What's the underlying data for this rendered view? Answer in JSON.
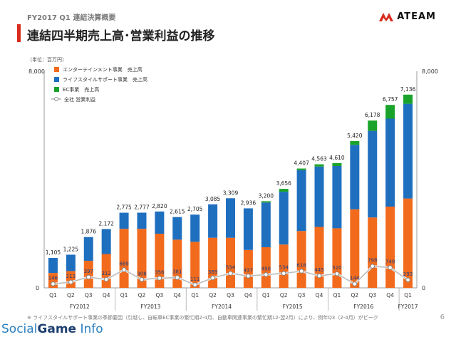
{
  "header": {
    "subtitle": "FY2017 Q1 連結決算概要",
    "title": "連結四半期売上高･営業利益の推移",
    "logo_text": "ATEAM"
  },
  "footnote": "※ ライフスタイルサポート事業の季節要因（引越し、自転車EC事業の繁忙期2-4月、自動車関連事業の繁忙期12-翌2月）により、例年Q3（2-4月）がピーク",
  "watermark": {
    "part1": "Social",
    "part2": "Game",
    "part3": "Info"
  },
  "page_number": "6",
  "colors": {
    "entertainment": "#f26b1d",
    "lifestyle": "#1f6fbf",
    "ec": "#1aa32a",
    "op_line": "#bbbbbb",
    "accent": "#d92b1c"
  },
  "chart_data": {
    "type": "bar",
    "unit_label": "（単位：百万円）",
    "y_left_ticks": [
      "8,000",
      "0"
    ],
    "y_right_ticks": [
      "8,000",
      "0"
    ],
    "ylim": [
      0,
      8000
    ],
    "categories": [
      "Q1",
      "Q2",
      "Q3",
      "Q4",
      "Q1",
      "Q2",
      "Q3",
      "Q4",
      "Q1",
      "Q2",
      "Q3",
      "Q4",
      "Q1",
      "Q2",
      "Q3",
      "Q4",
      "Q1",
      "Q2",
      "Q3",
      "Q4",
      "Q1"
    ],
    "fiscal_years": [
      {
        "label": "FY2012",
        "start": 0,
        "end": 3
      },
      {
        "label": "FY2013",
        "start": 4,
        "end": 7
      },
      {
        "label": "FY2014",
        "start": 8,
        "end": 11
      },
      {
        "label": "FY2015",
        "start": 12,
        "end": 15
      },
      {
        "label": "FY2016",
        "start": 16,
        "end": 19
      },
      {
        "label": "FY2017",
        "start": 20,
        "end": 20
      }
    ],
    "series": [
      {
        "name": "エンターテインメント事業　売上高",
        "color": "#f26b1d",
        "values": [
          550,
          620,
          1000,
          1250,
          2180,
          2180,
          2000,
          1780,
          1700,
          1850,
          1850,
          1400,
          1500,
          1600,
          2100,
          2250,
          2200,
          2900,
          2600,
          3000,
          3300
        ]
      },
      {
        "name": "ライフスタイルサポート事業　売上高",
        "color": "#1f6fbf",
        "values": [
          555,
          605,
          876,
          922,
          595,
          597,
          820,
          835,
          1005,
          1235,
          1459,
          1536,
          1650,
          1950,
          2250,
          2230,
          2300,
          2380,
          3200,
          3250,
          3500
        ]
      },
      {
        "name": "EC事業　売上高",
        "color": "#1aa32a",
        "values": [
          0,
          0,
          0,
          0,
          0,
          0,
          0,
          0,
          0,
          0,
          0,
          0,
          50,
          106,
          57,
          83,
          110,
          140,
          378,
          507,
          336
        ]
      }
    ],
    "totals": [
      "1,105",
      "1,225",
      "1,876",
      "2,172",
      "2,775",
      "2,777",
      "2,820",
      "2,615",
      "2,705",
      "3,085",
      "3,309",
      "2,936",
      "3,200",
      "3,656",
      "4,407",
      "4,563",
      "4,610",
      "5,420",
      "6,178",
      "6,757",
      "7,136"
    ],
    "operating_profit": {
      "name": "全社 営業利益",
      "values": [
        146,
        213,
        397,
        312,
        669,
        308,
        356,
        381,
        111,
        369,
        534,
        437,
        490,
        534,
        618,
        445,
        520,
        144,
        798,
        748,
        293
      ],
      "labels": [
        "146",
        "213",
        "397",
        "312",
        "669",
        "308",
        "356",
        "381",
        "111",
        "369",
        "534",
        "437",
        "490",
        "534",
        "618",
        "445",
        "520",
        "144",
        "798",
        "748",
        "293"
      ]
    }
  }
}
